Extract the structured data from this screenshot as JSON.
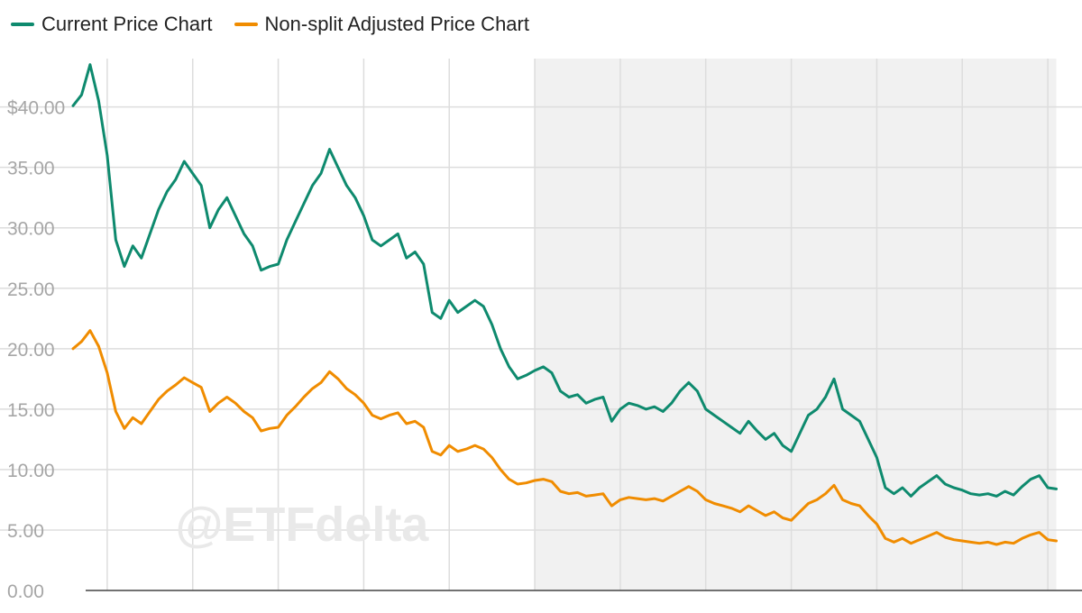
{
  "colors": {
    "current": "#0e8a6e",
    "adjusted": "#f08c00",
    "grid": "#dddddd",
    "shade": "#f1f1f1",
    "tick_text": "#a6a6a6",
    "watermark": "#e9e9e9"
  },
  "watermark": "@ETFdelta",
  "chart_data": {
    "type": "line",
    "title": "",
    "xlabel": "",
    "ylabel": "",
    "ylim": [
      0,
      44
    ],
    "yticks": [
      {
        "value": 0,
        "label": "0.00"
      },
      {
        "value": 5,
        "label": "5.00"
      },
      {
        "value": 10,
        "label": "10.00"
      },
      {
        "value": 15,
        "label": "15.00"
      },
      {
        "value": 20,
        "label": "20.00"
      },
      {
        "value": 25,
        "label": "25.00"
      },
      {
        "value": 30,
        "label": "30.00"
      },
      {
        "value": 35,
        "label": "35.00"
      },
      {
        "value": 40,
        "label": "$40.00"
      }
    ],
    "x_axis_note": "12 periodic intervals (about 3 months each); tick labels cut off at bottom edge",
    "shaded_region": {
      "x_start": 5.6,
      "x_end": 11.7
    },
    "legend_position": "top-left",
    "grid": true,
    "series": [
      {
        "name": "Current Price Chart",
        "color_key": "current",
        "points": [
          [
            0.2,
            40.1
          ],
          [
            0.3,
            41.0
          ],
          [
            0.4,
            43.5
          ],
          [
            0.5,
            40.5
          ],
          [
            0.6,
            36.0
          ],
          [
            0.7,
            29.0
          ],
          [
            0.8,
            26.8
          ],
          [
            0.9,
            28.5
          ],
          [
            1.0,
            27.5
          ],
          [
            1.1,
            29.5
          ],
          [
            1.2,
            31.5
          ],
          [
            1.3,
            33.0
          ],
          [
            1.4,
            34.0
          ],
          [
            1.5,
            35.5
          ],
          [
            1.6,
            34.5
          ],
          [
            1.7,
            33.5
          ],
          [
            1.8,
            30.0
          ],
          [
            1.9,
            31.5
          ],
          [
            2.0,
            32.5
          ],
          [
            2.1,
            31.0
          ],
          [
            2.2,
            29.5
          ],
          [
            2.3,
            28.5
          ],
          [
            2.4,
            26.5
          ],
          [
            2.5,
            26.8
          ],
          [
            2.6,
            27.0
          ],
          [
            2.7,
            29.0
          ],
          [
            2.8,
            30.5
          ],
          [
            2.9,
            32.0
          ],
          [
            3.0,
            33.5
          ],
          [
            3.1,
            34.5
          ],
          [
            3.2,
            36.5
          ],
          [
            3.3,
            35.0
          ],
          [
            3.4,
            33.5
          ],
          [
            3.5,
            32.5
          ],
          [
            3.6,
            31.0
          ],
          [
            3.7,
            29.0
          ],
          [
            3.8,
            28.5
          ],
          [
            3.9,
            29.0
          ],
          [
            4.0,
            29.5
          ],
          [
            4.1,
            27.5
          ],
          [
            4.2,
            28.0
          ],
          [
            4.3,
            27.0
          ],
          [
            4.4,
            23.0
          ],
          [
            4.5,
            22.5
          ],
          [
            4.6,
            24.0
          ],
          [
            4.7,
            23.0
          ],
          [
            4.8,
            23.5
          ],
          [
            4.9,
            24.0
          ],
          [
            5.0,
            23.5
          ],
          [
            5.1,
            22.0
          ],
          [
            5.2,
            20.0
          ],
          [
            5.3,
            18.5
          ],
          [
            5.4,
            17.5
          ],
          [
            5.5,
            17.8
          ],
          [
            5.6,
            18.2
          ],
          [
            5.7,
            18.5
          ],
          [
            5.8,
            18.0
          ],
          [
            5.9,
            16.5
          ],
          [
            6.0,
            16.0
          ],
          [
            6.1,
            16.2
          ],
          [
            6.2,
            15.5
          ],
          [
            6.3,
            15.8
          ],
          [
            6.4,
            16.0
          ],
          [
            6.5,
            14.0
          ],
          [
            6.6,
            15.0
          ],
          [
            6.7,
            15.5
          ],
          [
            6.8,
            15.3
          ],
          [
            6.9,
            15.0
          ],
          [
            7.0,
            15.2
          ],
          [
            7.1,
            14.8
          ],
          [
            7.2,
            15.5
          ],
          [
            7.3,
            16.5
          ],
          [
            7.4,
            17.2
          ],
          [
            7.5,
            16.5
          ],
          [
            7.6,
            15.0
          ],
          [
            7.7,
            14.5
          ],
          [
            7.8,
            14.0
          ],
          [
            7.9,
            13.5
          ],
          [
            8.0,
            13.0
          ],
          [
            8.1,
            14.0
          ],
          [
            8.2,
            13.2
          ],
          [
            8.3,
            12.5
          ],
          [
            8.4,
            13.0
          ],
          [
            8.5,
            12.0
          ],
          [
            8.6,
            11.5
          ],
          [
            8.7,
            13.0
          ],
          [
            8.8,
            14.5
          ],
          [
            8.9,
            15.0
          ],
          [
            9.0,
            16.0
          ],
          [
            9.1,
            17.5
          ],
          [
            9.2,
            15.0
          ],
          [
            9.3,
            14.5
          ],
          [
            9.4,
            14.0
          ],
          [
            9.5,
            12.5
          ],
          [
            9.6,
            11.0
          ],
          [
            9.7,
            8.5
          ],
          [
            9.8,
            8.0
          ],
          [
            9.9,
            8.5
          ],
          [
            10.0,
            7.8
          ],
          [
            10.1,
            8.5
          ],
          [
            10.2,
            9.0
          ],
          [
            10.3,
            9.5
          ],
          [
            10.4,
            8.8
          ],
          [
            10.5,
            8.5
          ],
          [
            10.6,
            8.3
          ],
          [
            10.7,
            8.0
          ],
          [
            10.8,
            7.9
          ],
          [
            10.9,
            8.0
          ],
          [
            11.0,
            7.8
          ],
          [
            11.1,
            8.2
          ],
          [
            11.2,
            7.9
          ],
          [
            11.3,
            8.6
          ],
          [
            11.4,
            9.2
          ],
          [
            11.5,
            9.5
          ],
          [
            11.6,
            8.5
          ],
          [
            11.7,
            8.4
          ]
        ]
      },
      {
        "name": "Non-split Adjusted Price Chart",
        "color_key": "adjusted",
        "points": [
          [
            0.2,
            20.0
          ],
          [
            0.3,
            20.6
          ],
          [
            0.4,
            21.5
          ],
          [
            0.5,
            20.2
          ],
          [
            0.6,
            18.0
          ],
          [
            0.7,
            14.8
          ],
          [
            0.8,
            13.4
          ],
          [
            0.9,
            14.3
          ],
          [
            1.0,
            13.8
          ],
          [
            1.1,
            14.8
          ],
          [
            1.2,
            15.8
          ],
          [
            1.3,
            16.5
          ],
          [
            1.4,
            17.0
          ],
          [
            1.5,
            17.6
          ],
          [
            1.6,
            17.2
          ],
          [
            1.7,
            16.8
          ],
          [
            1.8,
            14.8
          ],
          [
            1.9,
            15.5
          ],
          [
            2.0,
            16.0
          ],
          [
            2.1,
            15.5
          ],
          [
            2.2,
            14.8
          ],
          [
            2.3,
            14.3
          ],
          [
            2.4,
            13.2
          ],
          [
            2.5,
            13.4
          ],
          [
            2.6,
            13.5
          ],
          [
            2.7,
            14.5
          ],
          [
            2.8,
            15.2
          ],
          [
            2.9,
            16.0
          ],
          [
            3.0,
            16.7
          ],
          [
            3.1,
            17.2
          ],
          [
            3.2,
            18.1
          ],
          [
            3.3,
            17.5
          ],
          [
            3.4,
            16.7
          ],
          [
            3.5,
            16.2
          ],
          [
            3.6,
            15.5
          ],
          [
            3.7,
            14.5
          ],
          [
            3.8,
            14.2
          ],
          [
            3.9,
            14.5
          ],
          [
            4.0,
            14.7
          ],
          [
            4.1,
            13.8
          ],
          [
            4.2,
            14.0
          ],
          [
            4.3,
            13.5
          ],
          [
            4.4,
            11.5
          ],
          [
            4.5,
            11.2
          ],
          [
            4.6,
            12.0
          ],
          [
            4.7,
            11.5
          ],
          [
            4.8,
            11.7
          ],
          [
            4.9,
            12.0
          ],
          [
            5.0,
            11.7
          ],
          [
            5.1,
            11.0
          ],
          [
            5.2,
            10.0
          ],
          [
            5.3,
            9.2
          ],
          [
            5.4,
            8.8
          ],
          [
            5.5,
            8.9
          ],
          [
            5.6,
            9.1
          ],
          [
            5.7,
            9.2
          ],
          [
            5.8,
            9.0
          ],
          [
            5.9,
            8.2
          ],
          [
            6.0,
            8.0
          ],
          [
            6.1,
            8.1
          ],
          [
            6.2,
            7.8
          ],
          [
            6.3,
            7.9
          ],
          [
            6.4,
            8.0
          ],
          [
            6.5,
            7.0
          ],
          [
            6.6,
            7.5
          ],
          [
            6.7,
            7.7
          ],
          [
            6.8,
            7.6
          ],
          [
            6.9,
            7.5
          ],
          [
            7.0,
            7.6
          ],
          [
            7.1,
            7.4
          ],
          [
            7.2,
            7.8
          ],
          [
            7.3,
            8.2
          ],
          [
            7.4,
            8.6
          ],
          [
            7.5,
            8.2
          ],
          [
            7.6,
            7.5
          ],
          [
            7.7,
            7.2
          ],
          [
            7.8,
            7.0
          ],
          [
            7.9,
            6.8
          ],
          [
            8.0,
            6.5
          ],
          [
            8.1,
            7.0
          ],
          [
            8.2,
            6.6
          ],
          [
            8.3,
            6.2
          ],
          [
            8.4,
            6.5
          ],
          [
            8.5,
            6.0
          ],
          [
            8.6,
            5.8
          ],
          [
            8.7,
            6.5
          ],
          [
            8.8,
            7.2
          ],
          [
            8.9,
            7.5
          ],
          [
            9.0,
            8.0
          ],
          [
            9.1,
            8.7
          ],
          [
            9.2,
            7.5
          ],
          [
            9.3,
            7.2
          ],
          [
            9.4,
            7.0
          ],
          [
            9.5,
            6.2
          ],
          [
            9.6,
            5.5
          ],
          [
            9.7,
            4.3
          ],
          [
            9.8,
            4.0
          ],
          [
            9.9,
            4.3
          ],
          [
            10.0,
            3.9
          ],
          [
            10.1,
            4.2
          ],
          [
            10.2,
            4.5
          ],
          [
            10.3,
            4.8
          ],
          [
            10.4,
            4.4
          ],
          [
            10.5,
            4.2
          ],
          [
            10.6,
            4.1
          ],
          [
            10.7,
            4.0
          ],
          [
            10.8,
            3.9
          ],
          [
            10.9,
            4.0
          ],
          [
            11.0,
            3.8
          ],
          [
            11.1,
            4.0
          ],
          [
            11.2,
            3.9
          ],
          [
            11.3,
            4.3
          ],
          [
            11.4,
            4.6
          ],
          [
            11.5,
            4.8
          ],
          [
            11.6,
            4.2
          ],
          [
            11.7,
            4.1
          ]
        ]
      }
    ]
  }
}
